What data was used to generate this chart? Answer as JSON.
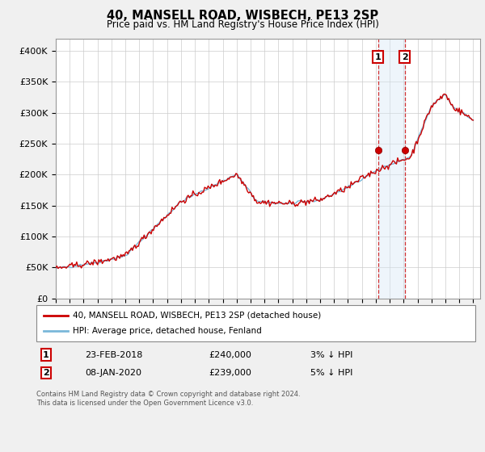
{
  "title": "40, MANSELL ROAD, WISBECH, PE13 2SP",
  "subtitle": "Price paid vs. HM Land Registry's House Price Index (HPI)",
  "ylabel_ticks": [
    "£0",
    "£50K",
    "£100K",
    "£150K",
    "£200K",
    "£250K",
    "£300K",
    "£350K",
    "£400K"
  ],
  "ytick_vals": [
    0,
    50000,
    100000,
    150000,
    200000,
    250000,
    300000,
    350000,
    400000
  ],
  "ylim": [
    0,
    420000
  ],
  "xlim_start": 1995.0,
  "xlim_end": 2025.5,
  "legend_line1": "40, MANSELL ROAD, WISBECH, PE13 2SP (detached house)",
  "legend_line2": "HPI: Average price, detached house, Fenland",
  "transaction1_date": "23-FEB-2018",
  "transaction1_price": "£240,000",
  "transaction1_hpi": "3% ↓ HPI",
  "transaction2_date": "08-JAN-2020",
  "transaction2_price": "£239,000",
  "transaction2_hpi": "5% ↓ HPI",
  "footer": "Contains HM Land Registry data © Crown copyright and database right 2024.\nThis data is licensed under the Open Government Licence v3.0.",
  "line_color_hpi": "#7ab8d9",
  "line_color_price": "#cc0000",
  "marker_color": "#cc0000",
  "shaded_region_color": "#d6e8f5",
  "dashed_line_color": "#cc0000",
  "background_color": "#f0f0f0",
  "plot_bg_color": "#ffffff",
  "grid_color": "#cccccc"
}
